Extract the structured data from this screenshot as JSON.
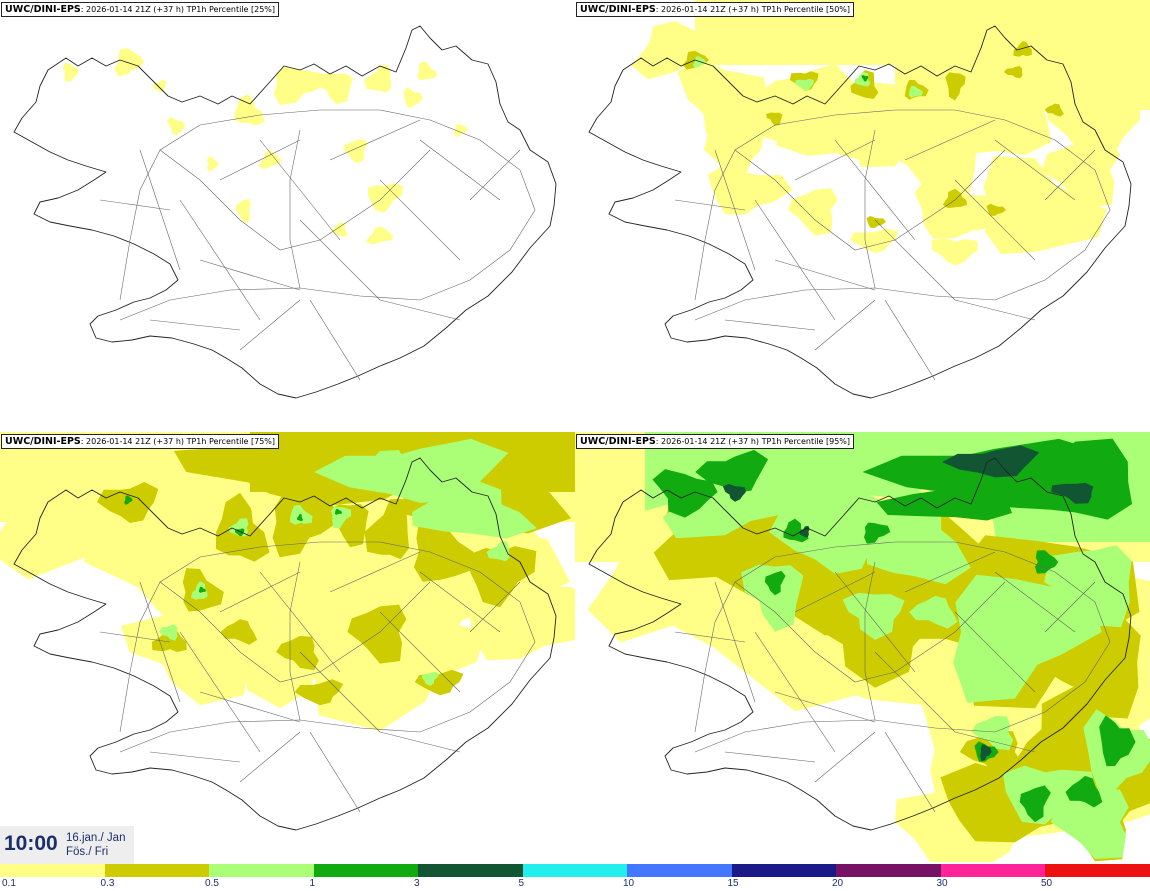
{
  "panels": [
    {
      "model": "UWC/DINI-EPS",
      "run_info": "2026-01-14 21Z (+37 h)",
      "field": "TP1h Percentile [25%]"
    },
    {
      "model": "UWC/DINI-EPS",
      "run_info": "2026-01-14 21Z (+37 h)",
      "field": "TP1h Percentile [50%]"
    },
    {
      "model": "UWC/DINI-EPS",
      "run_info": "2026-01-14 21Z (+37 h)",
      "field": "TP1h Percentile [75%]"
    },
    {
      "model": "UWC/DINI-EPS",
      "run_info": "2026-01-14 21Z (+37 h)",
      "field": "TP1h Percentile [95%]"
    }
  ],
  "valid_time": {
    "time": "10:00",
    "date": "16.jan./ Jan",
    "weekday": "Fös./ Fri"
  },
  "legend": {
    "colors": [
      "#ffff88",
      "#cccc00",
      "#aaff77",
      "#11aa11",
      "#115533",
      "#22eeee",
      "#4477ff",
      "#1a1a88",
      "#771166",
      "#ff2299",
      "#ee1111"
    ],
    "labels": [
      "0.1",
      "0.3",
      "0.5",
      "1",
      "3",
      "5",
      "10",
      "15",
      "20",
      "30",
      "50"
    ]
  },
  "map_colors": {
    "land_outline": "#222222",
    "roads": "#666666"
  }
}
